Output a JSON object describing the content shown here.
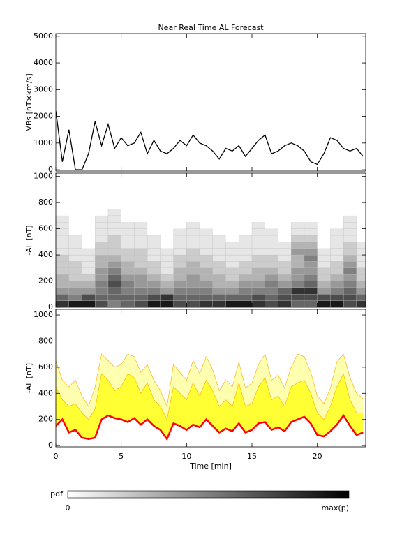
{
  "chart_data": [
    {
      "type": "line",
      "title": "Near Real Time AL Forecast",
      "ylabel": "VBs [nT×km/s]",
      "color": "#000000",
      "x": [
        0,
        0.5,
        1,
        1.5,
        2,
        2.5,
        3,
        3.5,
        4,
        4.5,
        5,
        5.5,
        6,
        6.5,
        7,
        7.5,
        8,
        8.5,
        9,
        9.5,
        10,
        10.5,
        11,
        11.5,
        12,
        12.5,
        13,
        13.5,
        14,
        14.5,
        15,
        15.5,
        16,
        16.5,
        17,
        17.5,
        18,
        18.5,
        19,
        19.5,
        20,
        20.5,
        21,
        21.5,
        22,
        22.5,
        23,
        23.5
      ],
      "values": [
        2200,
        300,
        1500,
        0,
        0,
        600,
        1800,
        900,
        1700,
        800,
        1200,
        900,
        1000,
        1400,
        600,
        1100,
        700,
        600,
        800,
        1100,
        900,
        1300,
        1000,
        900,
        700,
        400,
        800,
        700,
        900,
        500,
        800,
        1100,
        1300,
        600,
        700,
        900,
        1000,
        900,
        700,
        300,
        200,
        600,
        1200,
        1100,
        800,
        700,
        800,
        500
      ],
      "ylim": [
        -50,
        5100
      ],
      "yticks": [
        0,
        1000,
        2000,
        3000,
        4000,
        5000
      ]
    },
    {
      "type": "heatmap",
      "ylabel": "-AL [nT]",
      "xbins": [
        0,
        1,
        2,
        3,
        4,
        5,
        6,
        7,
        8,
        9,
        10,
        11,
        12,
        13,
        14,
        15,
        16,
        17,
        18,
        19,
        20,
        21,
        22,
        23,
        23.7
      ],
      "ybins": [
        0,
        50,
        100,
        150,
        200,
        250,
        300,
        350,
        400,
        450,
        500,
        550,
        600,
        650,
        700,
        750
      ],
      "z": [
        [
          0.8,
          0.6,
          0.4,
          0.3,
          0.3,
          0.2,
          0.2,
          0.2,
          0.1,
          0.1,
          0.1,
          0.1,
          0.1,
          0.1,
          0
        ],
        [
          0.9,
          0.5,
          0.4,
          0.3,
          0.2,
          0.2,
          0.2,
          0.1,
          0.1,
          0.1,
          0.1,
          0,
          0,
          0,
          0
        ],
        [
          0.9,
          0.7,
          0.4,
          0.3,
          0.2,
          0.1,
          0.1,
          0.1,
          0.1,
          0,
          0,
          0,
          0,
          0,
          0
        ],
        [
          0.7,
          0.6,
          0.5,
          0.5,
          0.4,
          0.4,
          0.3,
          0.3,
          0.2,
          0.2,
          0.1,
          0.1,
          0.1,
          0.1,
          0
        ],
        [
          0.5,
          0.6,
          0.6,
          0.7,
          0.6,
          0.5,
          0.4,
          0.3,
          0.2,
          0.2,
          0.2,
          0.1,
          0.1,
          0.1,
          0.1
        ],
        [
          0.6,
          0.6,
          0.5,
          0.5,
          0.4,
          0.3,
          0.3,
          0.2,
          0.2,
          0.1,
          0.1,
          0.1,
          0.1,
          0,
          0
        ],
        [
          0.7,
          0.6,
          0.5,
          0.4,
          0.4,
          0.3,
          0.2,
          0.2,
          0.2,
          0.1,
          0.1,
          0.1,
          0.1,
          0,
          0
        ],
        [
          0.9,
          0.7,
          0.5,
          0.4,
          0.3,
          0.2,
          0.2,
          0.1,
          0.1,
          0.1,
          0.1,
          0,
          0,
          0,
          0
        ],
        [
          0.9,
          0.8,
          0.4,
          0.3,
          0.2,
          0.1,
          0.1,
          0.1,
          0.1,
          0,
          0,
          0,
          0,
          0,
          0
        ],
        [
          0.7,
          0.6,
          0.5,
          0.4,
          0.3,
          0.3,
          0.2,
          0.2,
          0.1,
          0.1,
          0.1,
          0.1,
          0,
          0,
          0
        ],
        [
          0.7,
          0.6,
          0.5,
          0.4,
          0.4,
          0.3,
          0.3,
          0.2,
          0.2,
          0.1,
          0.1,
          0.1,
          0.1,
          0,
          0
        ],
        [
          0.8,
          0.6,
          0.5,
          0.4,
          0.3,
          0.3,
          0.2,
          0.2,
          0.1,
          0.1,
          0.1,
          0.1,
          0,
          0,
          0
        ],
        [
          0.8,
          0.6,
          0.4,
          0.3,
          0.3,
          0.2,
          0.2,
          0.1,
          0.1,
          0.1,
          0.1,
          0,
          0,
          0,
          0
        ],
        [
          0.9,
          0.6,
          0.4,
          0.3,
          0.2,
          0.2,
          0.1,
          0.1,
          0.1,
          0.1,
          0,
          0,
          0,
          0,
          0
        ],
        [
          0.9,
          0.6,
          0.5,
          0.4,
          0.3,
          0.2,
          0.2,
          0.1,
          0.1,
          0.1,
          0.1,
          0,
          0,
          0,
          0
        ],
        [
          0.8,
          0.7,
          0.5,
          0.4,
          0.3,
          0.3,
          0.2,
          0.2,
          0.1,
          0.1,
          0.1,
          0.1,
          0.1,
          0,
          0
        ],
        [
          0.7,
          0.6,
          0.5,
          0.5,
          0.4,
          0.3,
          0.2,
          0.2,
          0.1,
          0.1,
          0.1,
          0.1,
          0,
          0,
          0
        ],
        [
          0.8,
          0.7,
          0.6,
          0.4,
          0.3,
          0.2,
          0.2,
          0.1,
          0.1,
          0.1,
          0,
          0,
          0,
          0,
          0
        ],
        [
          0.6,
          0.7,
          0.8,
          0.5,
          0.4,
          0.4,
          0.3,
          0.3,
          0.4,
          0.3,
          0.2,
          0.1,
          0.1,
          0,
          0
        ],
        [
          0.6,
          0.7,
          0.8,
          0.6,
          0.5,
          0.4,
          0.4,
          0.5,
          0.4,
          0.3,
          0.2,
          0.1,
          0.1,
          0,
          0
        ],
        [
          0.9,
          0.7,
          0.4,
          0.3,
          0.2,
          0.2,
          0.1,
          0.1,
          0.1,
          0,
          0,
          0,
          0,
          0,
          0
        ],
        [
          0.9,
          0.7,
          0.5,
          0.4,
          0.3,
          0.2,
          0.2,
          0.1,
          0.1,
          0.1,
          0.1,
          0.1,
          0,
          0,
          0
        ],
        [
          0.7,
          0.7,
          0.6,
          0.5,
          0.4,
          0.5,
          0.4,
          0.3,
          0.2,
          0.2,
          0.1,
          0.1,
          0.1,
          0.1,
          0
        ],
        [
          0.8,
          0.6,
          0.4,
          0.3,
          0.2,
          0.2,
          0.1,
          0.1,
          0.1,
          0.1,
          0,
          0,
          0,
          0,
          0
        ]
      ],
      "ylim": [
        0,
        1025
      ],
      "yticks": [
        0,
        200,
        400,
        600,
        800,
        1000
      ]
    },
    {
      "type": "band",
      "ylabel": "-AL [nT]",
      "xlabel": "Time [min]",
      "x": [
        0,
        0.5,
        1,
        1.5,
        2,
        2.5,
        3,
        3.5,
        4,
        4.5,
        5,
        5.5,
        6,
        6.5,
        7,
        7.5,
        8,
        8.5,
        9,
        9.5,
        10,
        10.5,
        11,
        11.5,
        12,
        12.5,
        13,
        13.5,
        14,
        14.5,
        15,
        15.5,
        16,
        16.5,
        17,
        17.5,
        18,
        18.5,
        19,
        19.5,
        20,
        20.5,
        21,
        21.5,
        22,
        22.5,
        23,
        23.5
      ],
      "series": [
        {
          "color": "#ffffb0",
          "values": [
            650,
            500,
            450,
            500,
            380,
            300,
            450,
            700,
            650,
            600,
            620,
            700,
            680,
            560,
            620,
            500,
            420,
            300,
            620,
            560,
            500,
            650,
            550,
            680,
            580,
            420,
            500,
            450,
            640,
            440,
            480,
            620,
            700,
            500,
            540,
            440,
            600,
            700,
            680,
            560,
            380,
            320,
            440,
            640,
            700,
            520,
            400,
            360
          ]
        },
        {
          "color": "#ffff33",
          "values": [
            450,
            350,
            300,
            320,
            250,
            200,
            280,
            550,
            500,
            420,
            450,
            550,
            520,
            400,
            480,
            350,
            300,
            200,
            450,
            400,
            350,
            480,
            380,
            500,
            420,
            300,
            350,
            300,
            480,
            300,
            320,
            450,
            520,
            350,
            380,
            300,
            450,
            480,
            500,
            400,
            250,
            200,
            300,
            450,
            550,
            350,
            250,
            250
          ]
        },
        {
          "color": "#ff0000",
          "values": [
            150,
            200,
            100,
            120,
            60,
            50,
            60,
            200,
            230,
            210,
            200,
            180,
            210,
            160,
            200,
            150,
            120,
            50,
            170,
            150,
            120,
            160,
            140,
            200,
            150,
            100,
            130,
            110,
            170,
            100,
            120,
            170,
            180,
            120,
            140,
            110,
            180,
            200,
            220,
            170,
            80,
            70,
            110,
            160,
            230,
            150,
            80,
            100
          ]
        }
      ],
      "xlim": [
        0,
        23.7
      ],
      "xticks": [
        0,
        5,
        10,
        15,
        20
      ],
      "ylim": [
        -10,
        1043
      ],
      "yticks": [
        0,
        200,
        400,
        600,
        800,
        1000
      ]
    }
  ],
  "colorbar": {
    "label": "pdf",
    "min_label": "0",
    "max_label": "max(p)"
  }
}
